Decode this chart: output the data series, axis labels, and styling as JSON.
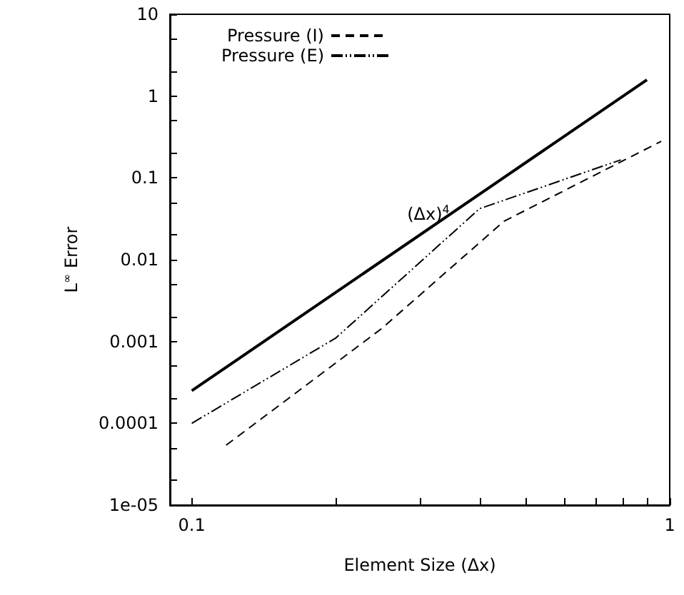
{
  "chart_data": {
    "type": "line",
    "xlabel": "Element Size (Δx)",
    "ylabel": "L$^{∞}$ Error",
    "series": [
      {
        "name": "Pressure (I)",
        "color": "#000000",
        "line_style": "dashed",
        "x": [
          0.118,
          0.25,
          0.45,
          0.96
        ],
        "values": [
          5.4e-05,
          0.00145,
          0.0295,
          0.28
        ]
      },
      {
        "name": "Pressure (E)",
        "color": "#000000",
        "line_style": "dashdotdot",
        "x": [
          0.1,
          0.2,
          0.4,
          0.79
        ],
        "values": [
          0.0001,
          0.0011,
          0.042,
          0.166
        ]
      },
      {
        "color": "#000000",
        "line_style": "solid",
        "x": [
          0.1,
          0.896
        ],
        "values": [
          0.00025,
          1.58
        ]
      }
    ],
    "annotations": [
      "(Δx)$^{4}$"
    ],
    "log": "xy",
    "xlim": [
      0.09,
      1
    ],
    "ylim": [
      1e-05,
      10
    ],
    "xticks": [
      0.1,
      {
        "value": 0.2,
        "label": null
      },
      {
        "value": 0.3,
        "label": null
      },
      {
        "value": 0.4,
        "label": null
      },
      {
        "value": 0.5,
        "label": null
      },
      {
        "value": 0.6,
        "label": null
      },
      {
        "value": 0.7,
        "label": null
      },
      {
        "value": 0.8,
        "label": null
      },
      {
        "value": 0.9,
        "label": null
      },
      1
    ],
    "yticks": [
      {
        "value": 1e-05,
        "label": "1e-05"
      },
      {
        "value": 2e-05,
        "label": null
      },
      {
        "value": 5e-05,
        "label": null
      },
      0.0001,
      {
        "value": 0.0002,
        "label": null
      },
      {
        "value": 0.0005,
        "label": null
      },
      0.001,
      {
        "value": 0.002,
        "label": null
      },
      {
        "value": 0.005,
        "label": null
      },
      0.01,
      {
        "value": 0.02,
        "label": null
      },
      {
        "value": 0.05,
        "label": null
      },
      0.1,
      {
        "value": 0.2,
        "label": null
      },
      {
        "value": 0.5,
        "label": null
      },
      1,
      {
        "value": 2,
        "label": null
      },
      {
        "value": 5,
        "label": null
      },
      10
    ],
    "grid": false,
    "legend": "top left",
    "marker": "none"
  }
}
